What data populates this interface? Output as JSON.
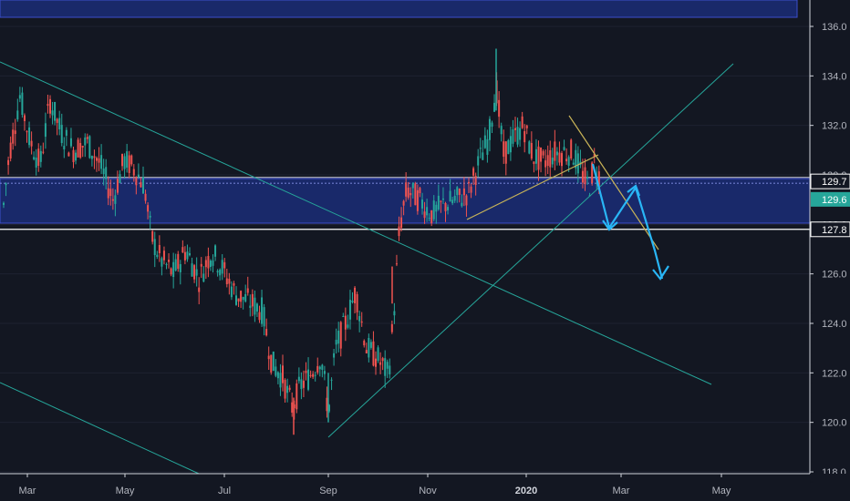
{
  "chart_data": {
    "type": "candlestick",
    "y_axis": {
      "range": [
        118.0,
        136.6
      ],
      "ticks": [
        "136.0",
        "134.0",
        "132.0",
        "130.0",
        "128.0",
        "126.0",
        "124.0",
        "122.0",
        "120.0",
        "118.0"
      ],
      "position": "right"
    },
    "x_axis": {
      "ticks": [
        {
          "label": "Mar",
          "bold": false
        },
        {
          "label": "May",
          "bold": false
        },
        {
          "label": "Jul",
          "bold": false
        },
        {
          "label": "Sep",
          "bold": false
        },
        {
          "label": "Nov",
          "bold": false
        },
        {
          "label": "2020",
          "bold": true
        },
        {
          "label": "Mar",
          "bold": false
        },
        {
          "label": "May",
          "bold": false
        }
      ]
    },
    "price_tags": [
      {
        "label": "129.7",
        "value": 129.7,
        "style": "outline"
      },
      {
        "label": "129.6",
        "value": 129.6,
        "style": "filled"
      },
      {
        "label": "127.8",
        "value": 127.8,
        "style": "outline"
      }
    ],
    "zones": [
      {
        "name": "resistance-zone-top",
        "y_from": 136.6,
        "y_to": 136.45
      },
      {
        "name": "support-zone",
        "y_from": 129.85,
        "y_to": 128.05
      }
    ],
    "horizontal_lines": [
      129.9,
      127.8
    ],
    "colors": {
      "background": "#131722",
      "up": "#26a69a",
      "down": "#ef5350",
      "zone_fill": "#1a2a6e",
      "zone_border": "#3f51d6",
      "trendline": "#26a69a",
      "triangle": "#c9b458",
      "projection": "#29b6f6",
      "tag_filled": "#26a69a"
    }
  }
}
